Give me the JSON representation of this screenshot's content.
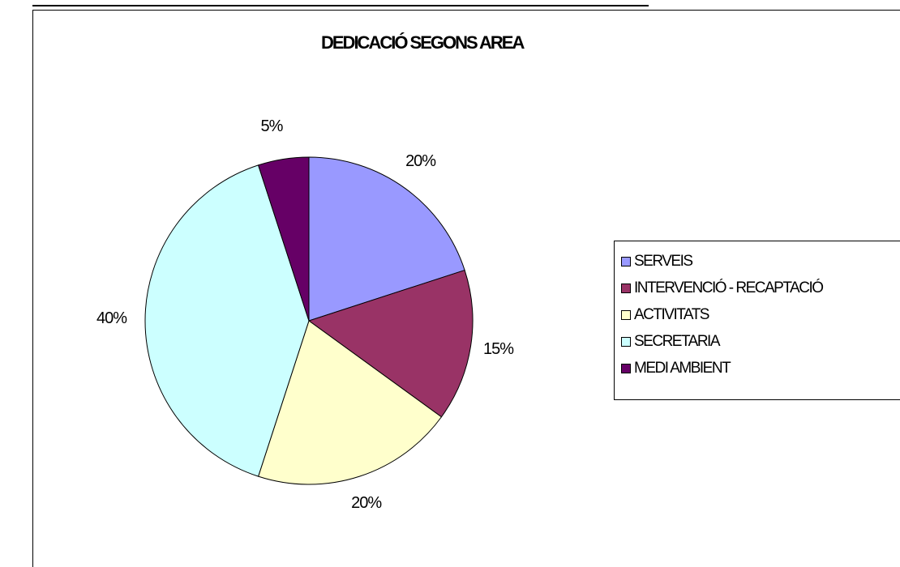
{
  "chart_data": {
    "type": "pie",
    "title": "DEDICACIÓ SEGONS AREA",
    "categories": [
      "SERVEIS",
      "INTERVENCIÓ - RECAPTACIÓ",
      "ACTIVITATS",
      "SECRETARIA",
      "MEDI AMBIENT"
    ],
    "values": [
      20,
      15,
      20,
      40,
      5
    ],
    "value_labels": [
      "20%",
      "15%",
      "20%",
      "40%",
      "5%"
    ],
    "colors": [
      "#9999ff",
      "#993366",
      "#ffffcc",
      "#ccffff",
      "#660066"
    ],
    "start_angle_deg": 0,
    "direction": "clockwise",
    "legend_position": "right"
  }
}
